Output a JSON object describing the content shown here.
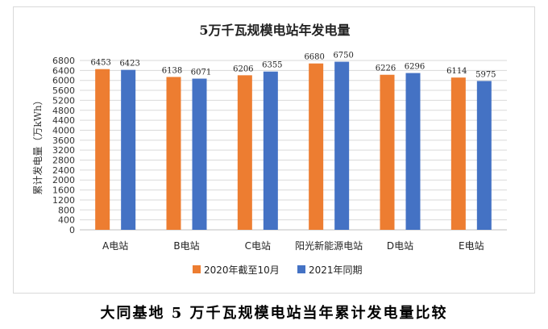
{
  "chart_data": {
    "type": "bar",
    "title": "5万千瓦规模电站年发电量",
    "ylabel": "累计发电量（万kWh）",
    "xlabel": "",
    "ylim": [
      0,
      6800
    ],
    "ytick_step": 400,
    "grid": true,
    "legend_position": "bottom",
    "categories": [
      "A电站",
      "B电站",
      "C电站",
      "阳光新能源电站",
      "D电站",
      "E电站"
    ],
    "series": [
      {
        "name": "2020年截至10月",
        "color": "#ED7D31",
        "values": [
          6453,
          6138,
          6206,
          6680,
          6226,
          6114
        ]
      },
      {
        "name": "2021年同期",
        "color": "#4472C4",
        "values": [
          6423,
          6071,
          6355,
          6750,
          6296,
          5975
        ]
      }
    ]
  },
  "caption": "大同基地 5 万千瓦规模电站当年累计发电量比较"
}
